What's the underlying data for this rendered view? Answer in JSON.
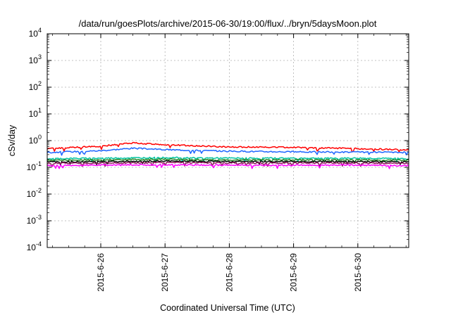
{
  "chart_data": {
    "type": "line",
    "title": "/data/run/goesPlots/archive/2015-06-30/19:00/flux/../bryn/5daysMoon.plot",
    "xlabel": "Coordinated Universal Time (UTC)",
    "ylabel": "cSv/day",
    "yscale": "log",
    "ylim": [
      0.0001,
      10000
    ],
    "xlim": [
      "2015-06-25 04:00",
      "2015-06-30 19:00"
    ],
    "x_ticks": [
      "2015-6-26",
      "2015-6-27",
      "2015-6-28",
      "2015-6-29",
      "2015-6-30"
    ],
    "y_ticks": [
      {
        "base": "10",
        "exp": "-4"
      },
      {
        "base": "10",
        "exp": "-3"
      },
      {
        "base": "10",
        "exp": "-2"
      },
      {
        "base": "10",
        "exp": "-1"
      },
      {
        "base": "10",
        "exp": "0"
      },
      {
        "base": "10",
        "exp": "1"
      },
      {
        "base": "10",
        "exp": "2"
      },
      {
        "base": "10",
        "exp": "3"
      },
      {
        "base": "10",
        "exp": "4"
      }
    ],
    "grid": true,
    "legend": "none",
    "series": [
      {
        "color": "#ff0000",
        "x": [
          "2015-06-25 04:00",
          "2015-06-26 00:00",
          "2015-06-26 12:00",
          "2015-06-27 00:00",
          "2015-06-28 00:00",
          "2015-06-29 00:00",
          "2015-06-30 00:00",
          "2015-06-30 19:00"
        ],
        "values": [
          0.5,
          0.62,
          0.82,
          0.7,
          0.58,
          0.56,
          0.5,
          0.45
        ]
      },
      {
        "color": "#1f66ff",
        "x": [
          "2015-06-25 04:00",
          "2015-06-26 00:00",
          "2015-06-26 12:00",
          "2015-06-27 00:00",
          "2015-06-28 00:00",
          "2015-06-29 00:00",
          "2015-06-30 00:00",
          "2015-06-30 19:00"
        ],
        "values": [
          0.36,
          0.42,
          0.52,
          0.46,
          0.4,
          0.38,
          0.37,
          0.36
        ]
      },
      {
        "color": "#00c4a0",
        "x": [
          "2015-06-25 04:00",
          "2015-06-26 00:00",
          "2015-06-27 00:00",
          "2015-06-28 00:00",
          "2015-06-29 00:00",
          "2015-06-30 00:00",
          "2015-06-30 19:00"
        ],
        "values": [
          0.21,
          0.22,
          0.23,
          0.22,
          0.22,
          0.22,
          0.21
        ]
      },
      {
        "color": "#2b8a2b",
        "x": [
          "2015-06-25 04:00",
          "2015-06-26 00:00",
          "2015-06-27 00:00",
          "2015-06-28 00:00",
          "2015-06-29 00:00",
          "2015-06-30 00:00",
          "2015-06-30 19:00"
        ],
        "values": [
          0.185,
          0.19,
          0.2,
          0.19,
          0.19,
          0.19,
          0.185
        ]
      },
      {
        "color": "#000000",
        "x": [
          "2015-06-25 04:00",
          "2015-06-26 00:00",
          "2015-06-27 00:00",
          "2015-06-28 00:00",
          "2015-06-29 00:00",
          "2015-06-30 00:00",
          "2015-06-30 19:00"
        ],
        "values": [
          0.16,
          0.165,
          0.17,
          0.165,
          0.165,
          0.165,
          0.16
        ]
      },
      {
        "color": "#8b1a5a",
        "x": [
          "2015-06-25 04:00",
          "2015-06-26 00:00",
          "2015-06-27 00:00",
          "2015-06-28 00:00",
          "2015-06-29 00:00",
          "2015-06-30 00:00",
          "2015-06-30 19:00"
        ],
        "values": [
          0.14,
          0.145,
          0.15,
          0.145,
          0.145,
          0.145,
          0.14
        ]
      },
      {
        "color": "#ff00ff",
        "x": [
          "2015-06-25 04:00",
          "2015-06-26 00:00",
          "2015-06-27 00:00",
          "2015-06-28 00:00",
          "2015-06-29 00:00",
          "2015-06-30 00:00",
          "2015-06-30 19:00"
        ],
        "values": [
          0.115,
          0.12,
          0.125,
          0.12,
          0.12,
          0.12,
          0.115
        ]
      }
    ]
  }
}
